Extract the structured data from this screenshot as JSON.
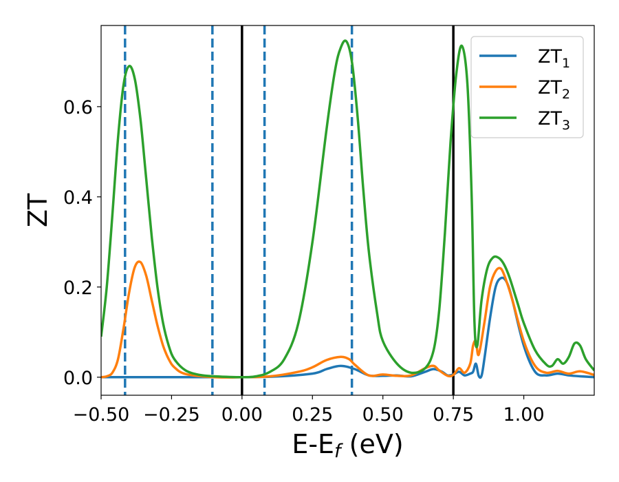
{
  "chart_data": {
    "type": "line",
    "title": "",
    "xlabel": "E-E",
    "xlabel_sub": "f",
    "xlabel_suffix": " (eV)",
    "ylabel": "ZT",
    "xlim": [
      -0.5,
      1.25
    ],
    "ylim": [
      -0.04,
      0.78
    ],
    "xticks": [
      -0.5,
      -0.25,
      0.0,
      0.25,
      0.5,
      0.75,
      1.0
    ],
    "xtick_labels": [
      "−0.50",
      "−0.25",
      "0.00",
      "0.25",
      "0.50",
      "0.75",
      "1.00"
    ],
    "yticks": [
      0.0,
      0.2,
      0.4,
      0.6
    ],
    "ytick_labels": [
      "0.0",
      "0.2",
      "0.4",
      "0.6"
    ],
    "legend_position": "top-right",
    "series": [
      {
        "name": "ZT",
        "name_sub": "1",
        "color": "#1f77b4",
        "x": [
          -0.5,
          -0.3,
          -0.1,
          0.1,
          0.25,
          0.3,
          0.35,
          0.4,
          0.45,
          0.5,
          0.55,
          0.6,
          0.65,
          0.68,
          0.71,
          0.73,
          0.75,
          0.77,
          0.79,
          0.81,
          0.82,
          0.83,
          0.84,
          0.85,
          0.86,
          0.88,
          0.9,
          0.92,
          0.94,
          0.96,
          1.0,
          1.04,
          1.08,
          1.12,
          1.16,
          1.2,
          1.25
        ],
        "y": [
          0.0,
          0.0,
          0.0,
          0.001,
          0.008,
          0.018,
          0.025,
          0.018,
          0.004,
          0.003,
          0.004,
          0.002,
          0.012,
          0.018,
          0.012,
          0.004,
          0.006,
          0.012,
          0.004,
          0.008,
          0.012,
          0.03,
          0.003,
          0.003,
          0.04,
          0.13,
          0.2,
          0.22,
          0.21,
          0.17,
          0.07,
          0.012,
          0.004,
          0.008,
          0.004,
          0.002,
          0.0
        ]
      },
      {
        "name": "ZT",
        "name_sub": "2",
        "color": "#ff7f0e",
        "x": [
          -0.5,
          -0.48,
          -0.46,
          -0.44,
          -0.42,
          -0.4,
          -0.38,
          -0.36,
          -0.34,
          -0.32,
          -0.3,
          -0.28,
          -0.26,
          -0.24,
          -0.2,
          -0.1,
          0.0,
          0.1,
          0.2,
          0.25,
          0.3,
          0.35,
          0.38,
          0.4,
          0.45,
          0.5,
          0.55,
          0.6,
          0.65,
          0.68,
          0.7,
          0.73,
          0.75,
          0.77,
          0.79,
          0.81,
          0.82,
          0.83,
          0.84,
          0.86,
          0.88,
          0.9,
          0.92,
          0.94,
          0.96,
          1.0,
          1.04,
          1.08,
          1.12,
          1.16,
          1.2,
          1.25
        ],
        "y": [
          0.0,
          0.002,
          0.01,
          0.04,
          0.11,
          0.19,
          0.245,
          0.255,
          0.225,
          0.17,
          0.115,
          0.07,
          0.04,
          0.022,
          0.007,
          0.0,
          0.0,
          0.002,
          0.012,
          0.022,
          0.038,
          0.045,
          0.04,
          0.028,
          0.004,
          0.006,
          0.003,
          0.004,
          0.02,
          0.025,
          0.015,
          0.003,
          0.005,
          0.02,
          0.01,
          0.03,
          0.07,
          0.08,
          0.05,
          0.12,
          0.2,
          0.235,
          0.24,
          0.21,
          0.17,
          0.08,
          0.025,
          0.01,
          0.014,
          0.008,
          0.013,
          0.005
        ]
      },
      {
        "name": "ZT",
        "name_sub": "3",
        "color": "#2ca02c",
        "x": [
          -0.5,
          -0.48,
          -0.46,
          -0.44,
          -0.42,
          -0.4,
          -0.38,
          -0.36,
          -0.34,
          -0.32,
          -0.3,
          -0.28,
          -0.26,
          -0.24,
          -0.2,
          -0.15,
          -0.1,
          0.0,
          0.05,
          0.1,
          0.15,
          0.2,
          0.25,
          0.3,
          0.33,
          0.35,
          0.37,
          0.39,
          0.41,
          0.43,
          0.45,
          0.48,
          0.5,
          0.55,
          0.6,
          0.65,
          0.68,
          0.7,
          0.72,
          0.74,
          0.76,
          0.78,
          0.8,
          0.815,
          0.825,
          0.835,
          0.85,
          0.87,
          0.89,
          0.91,
          0.93,
          0.95,
          0.98,
          1.0,
          1.04,
          1.08,
          1.1,
          1.12,
          1.14,
          1.16,
          1.18,
          1.2,
          1.22,
          1.25
        ],
        "y": [
          0.09,
          0.2,
          0.36,
          0.53,
          0.65,
          0.69,
          0.66,
          0.57,
          0.44,
          0.31,
          0.2,
          0.12,
          0.07,
          0.04,
          0.015,
          0.005,
          0.002,
          0.0,
          0.002,
          0.012,
          0.04,
          0.12,
          0.3,
          0.55,
          0.68,
          0.73,
          0.745,
          0.7,
          0.58,
          0.42,
          0.28,
          0.14,
          0.08,
          0.03,
          0.01,
          0.02,
          0.06,
          0.15,
          0.32,
          0.52,
          0.67,
          0.735,
          0.65,
          0.4,
          0.12,
          0.07,
          0.17,
          0.24,
          0.265,
          0.265,
          0.25,
          0.22,
          0.16,
          0.12,
          0.06,
          0.028,
          0.025,
          0.04,
          0.03,
          0.045,
          0.075,
          0.07,
          0.04,
          0.015
        ]
      }
    ],
    "vlines": [
      {
        "x": -0.415,
        "color": "#1f77b4",
        "style": "dashed"
      },
      {
        "x": -0.105,
        "color": "#1f77b4",
        "style": "dashed"
      },
      {
        "x": 0.0,
        "color": "#000000",
        "style": "solid"
      },
      {
        "x": 0.08,
        "color": "#1f77b4",
        "style": "dashed"
      },
      {
        "x": 0.39,
        "color": "#1f77b4",
        "style": "dashed"
      },
      {
        "x": 0.75,
        "color": "#000000",
        "style": "solid"
      }
    ]
  }
}
